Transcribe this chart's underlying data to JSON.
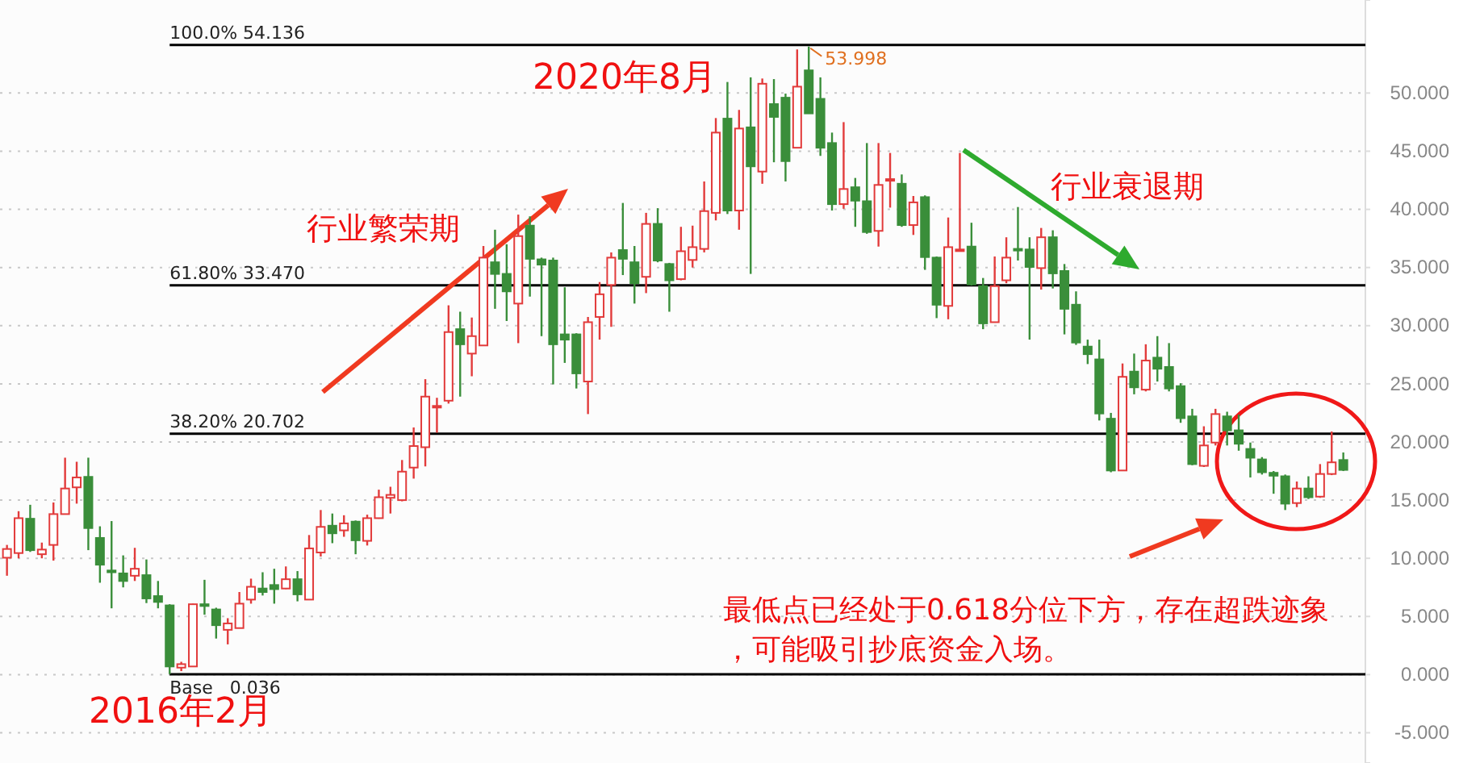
{
  "chart_data": {
    "type": "candlestick",
    "categories": [
      null,
      null,
      null,
      null,
      null,
      null,
      null,
      null,
      null,
      null,
      null,
      null,
      null,
      null,
      null,
      null,
      null,
      null,
      null,
      null,
      null,
      null,
      null,
      null,
      null,
      null,
      null,
      null,
      null,
      null,
      null,
      null,
      null,
      null,
      null,
      null,
      null,
      null,
      null,
      null,
      null,
      null,
      null,
      null,
      null,
      null,
      null,
      null,
      null,
      null,
      null,
      null,
      null,
      null,
      null,
      null,
      null,
      null,
      null,
      null,
      null,
      null,
      null,
      null,
      null,
      null,
      null,
      null,
      null,
      null,
      null,
      null,
      null,
      null,
      null,
      null,
      null,
      null,
      null,
      null,
      null,
      null,
      null,
      null,
      null,
      null,
      null,
      null,
      null,
      null,
      null,
      null,
      null,
      null,
      null,
      null,
      null,
      null,
      null,
      null,
      null,
      null,
      null,
      null,
      null,
      null,
      null,
      null,
      null,
      null,
      null,
      null,
      null,
      null,
      null,
      null
    ],
    "ohlc": [
      [
        10.05,
        11.15,
        8.5,
        10.8
      ],
      [
        10.45,
        14.05,
        10.0,
        13.45
      ],
      [
        13.4,
        14.6,
        10.55,
        10.7
      ],
      [
        10.35,
        11.35,
        10.0,
        10.75
      ],
      [
        11.15,
        14.8,
        9.8,
        13.8
      ],
      [
        13.8,
        18.65,
        13.8,
        16.0
      ],
      [
        16.1,
        18.3,
        14.7,
        16.95
      ],
      [
        17.0,
        18.65,
        10.7,
        12.6
      ],
      [
        11.75,
        12.75,
        7.9,
        9.45
      ],
      [
        8.95,
        13.2,
        5.7,
        8.8
      ],
      [
        8.7,
        10.25,
        7.5,
        8.05
      ],
      [
        8.5,
        10.9,
        8.05,
        9.1
      ],
      [
        8.55,
        9.9,
        6.15,
        6.55
      ],
      [
        6.75,
        8.05,
        5.7,
        6.25
      ],
      [
        5.95,
        6.05,
        0.036,
        0.7
      ],
      [
        0.6,
        1.1,
        0.3,
        0.9
      ],
      [
        0.7,
        6.1,
        0.7,
        6.05
      ],
      [
        6.05,
        8.15,
        5.15,
        5.9
      ],
      [
        5.6,
        5.75,
        3.1,
        4.25
      ],
      [
        3.85,
        4.85,
        2.6,
        4.4
      ],
      [
        4.0,
        7.1,
        4.0,
        6.1
      ],
      [
        6.45,
        8.25,
        6.1,
        7.55
      ],
      [
        7.4,
        8.8,
        6.8,
        7.1
      ],
      [
        7.7,
        9.1,
        6.1,
        7.35
      ],
      [
        7.4,
        9.3,
        7.35,
        8.2
      ],
      [
        8.2,
        8.9,
        6.3,
        6.9
      ],
      [
        6.45,
        12.0,
        6.45,
        10.85
      ],
      [
        10.5,
        14.15,
        10.15,
        12.7
      ],
      [
        12.8,
        13.85,
        11.3,
        12.15
      ],
      [
        12.4,
        13.7,
        11.85,
        13.0
      ],
      [
        13.15,
        13.25,
        10.35,
        11.55
      ],
      [
        11.5,
        13.75,
        11.1,
        13.45
      ],
      [
        13.45,
        15.9,
        13.4,
        15.25
      ],
      [
        15.2,
        16.15,
        13.85,
        15.45
      ],
      [
        15.0,
        18.45,
        14.9,
        17.45
      ],
      [
        17.8,
        21.25,
        16.85,
        19.65
      ],
      [
        19.55,
        25.4,
        17.9,
        23.9
      ],
      [
        23.05,
        23.8,
        20.8,
        23.1
      ],
      [
        23.55,
        31.75,
        23.3,
        29.45
      ],
      [
        29.7,
        31.2,
        23.9,
        28.4
      ],
      [
        27.6,
        30.7,
        25.65,
        29.1
      ],
      [
        28.3,
        36.85,
        28.3,
        35.85
      ],
      [
        35.45,
        38.25,
        31.45,
        34.45
      ],
      [
        34.45,
        37.0,
        30.4,
        32.95
      ],
      [
        31.9,
        39.55,
        28.5,
        37.7
      ],
      [
        38.6,
        39.4,
        32.5,
        35.75
      ],
      [
        35.7,
        35.85,
        29.1,
        35.25
      ],
      [
        35.6,
        35.85,
        24.95,
        28.4
      ],
      [
        29.25,
        33.3,
        26.8,
        28.8
      ],
      [
        29.25,
        29.35,
        24.6,
        25.9
      ],
      [
        25.2,
        30.75,
        22.4,
        30.3
      ],
      [
        30.75,
        33.75,
        28.8,
        32.7
      ],
      [
        33.5,
        36.3,
        29.9,
        35.85
      ],
      [
        36.5,
        40.55,
        34.35,
        35.75
      ],
      [
        35.45,
        36.85,
        31.9,
        33.65
      ],
      [
        34.2,
        39.7,
        32.8,
        38.75
      ],
      [
        38.75,
        40.1,
        35.45,
        35.6
      ],
      [
        35.3,
        35.4,
        31.2,
        33.9
      ],
      [
        34.0,
        38.5,
        33.9,
        36.4
      ],
      [
        35.65,
        38.6,
        35.0,
        36.75
      ],
      [
        36.6,
        42.4,
        36.3,
        39.85
      ],
      [
        39.7,
        47.85,
        39.05,
        46.6
      ],
      [
        47.8,
        50.95,
        39.6,
        39.9
      ],
      [
        39.9,
        48.55,
        38.25,
        46.95
      ],
      [
        47.05,
        51.35,
        34.45,
        43.7
      ],
      [
        43.25,
        51.25,
        42.2,
        50.8
      ],
      [
        49.05,
        51.2,
        44.05,
        47.95
      ],
      [
        49.6,
        49.95,
        42.4,
        44.15
      ],
      [
        45.3,
        53.75,
        45.3,
        50.55
      ],
      [
        51.95,
        53.998,
        48.25,
        48.25
      ],
      [
        49.5,
        51.35,
        44.6,
        45.3
      ],
      [
        45.7,
        46.6,
        39.9,
        40.45
      ],
      [
        40.45,
        47.5,
        40.05,
        41.75
      ],
      [
        41.9,
        42.7,
        38.5,
        40.75
      ],
      [
        40.7,
        45.7,
        37.9,
        38.05
      ],
      [
        38.15,
        45.7,
        36.8,
        42.1
      ],
      [
        42.5,
        44.85,
        40.15,
        42.6
      ],
      [
        42.2,
        43.0,
        38.5,
        38.65
      ],
      [
        38.65,
        41.15,
        37.8,
        40.6
      ],
      [
        41.05,
        41.2,
        34.8,
        35.9
      ],
      [
        35.85,
        35.95,
        30.65,
        31.8
      ],
      [
        31.7,
        39.3,
        30.55,
        36.75
      ],
      [
        36.45,
        44.85,
        36.45,
        36.55
      ],
      [
        36.8,
        38.85,
        33.45,
        33.55
      ],
      [
        33.4,
        34.1,
        29.7,
        30.2
      ],
      [
        30.3,
        35.95,
        30.3,
        33.4
      ],
      [
        33.9,
        37.6,
        33.65,
        35.85
      ],
      [
        36.6,
        40.2,
        35.6,
        36.5
      ],
      [
        36.55,
        37.6,
        28.8,
        35.05
      ],
      [
        34.95,
        38.4,
        33.1,
        37.6
      ],
      [
        37.6,
        38.2,
        33.2,
        34.5
      ],
      [
        34.7,
        35.3,
        29.25,
        31.45
      ],
      [
        31.8,
        32.95,
        28.35,
        28.55
      ],
      [
        28.2,
        28.8,
        26.7,
        27.55
      ],
      [
        27.1,
        28.8,
        21.85,
        22.45
      ],
      [
        22.0,
        22.5,
        17.4,
        17.55
      ],
      [
        17.55,
        26.75,
        17.55,
        25.6
      ],
      [
        26.05,
        27.6,
        24.1,
        24.7
      ],
      [
        24.5,
        28.4,
        24.35,
        27.0
      ],
      [
        27.25,
        29.1,
        25.2,
        26.3
      ],
      [
        26.45,
        28.5,
        24.35,
        24.6
      ],
      [
        24.8,
        25.05,
        21.65,
        22.05
      ],
      [
        22.2,
        22.85,
        18.0,
        18.1
      ],
      [
        17.95,
        21.35,
        17.85,
        19.7
      ],
      [
        19.95,
        22.85,
        19.7,
        22.4
      ],
      [
        22.2,
        22.6,
        19.7,
        21.0
      ],
      [
        21.0,
        22.35,
        19.25,
        19.85
      ],
      [
        19.4,
        19.95,
        16.95,
        18.65
      ],
      [
        18.5,
        18.7,
        17.2,
        17.4
      ],
      [
        17.35,
        17.5,
        15.55,
        17.1
      ],
      [
        17.05,
        17.2,
        14.15,
        14.7
      ],
      [
        14.75,
        16.6,
        14.4,
        16.0
      ],
      [
        16.0,
        17.05,
        15.1,
        15.25
      ],
      [
        15.3,
        18.1,
        15.2,
        17.25
      ],
      [
        17.25,
        20.9,
        17.15,
        18.25
      ],
      [
        18.45,
        19.1,
        17.5,
        17.6
      ]
    ],
    "ylim": [
      -7.6,
      58
    ],
    "yticks": [
      {
        "value": -5,
        "label": "-5.000"
      },
      {
        "value": 0,
        "label": "0.000"
      },
      {
        "value": 5,
        "label": "5.000"
      },
      {
        "value": 10,
        "label": "10.000"
      },
      {
        "value": 15,
        "label": "15.000"
      },
      {
        "value": 20,
        "label": "20.000"
      },
      {
        "value": 25,
        "label": "25.000"
      },
      {
        "value": 30,
        "label": "30.000"
      },
      {
        "value": 35,
        "label": "35.000"
      },
      {
        "value": 40,
        "label": "40.000"
      },
      {
        "value": 45,
        "label": "45.000"
      },
      {
        "value": 50,
        "label": "50.000"
      }
    ],
    "grid": "y",
    "tick_labels": "y",
    "ref_lines": [
      {
        "axis": "y",
        "value": 54.136,
        "label": "100.0% 54.136",
        "color": "#000000"
      },
      {
        "axis": "y",
        "value": 33.47,
        "label": "61.80% 33.470",
        "color": "#000000"
      },
      {
        "axis": "y",
        "value": 20.702,
        "label": "38.20% 20.702",
        "color": "#000000"
      },
      {
        "axis": "y",
        "value": 0.036,
        "label": "Base   0.036",
        "color": "#000000"
      }
    ],
    "annotations": [
      "2020年8月",
      "行业繁荣期",
      "行业衰退期",
      "2016年2月",
      "最低点已经处于0.618分位下方，存在超跌迹象，可能吸引抄底资金入场。",
      {
        "text": "53.998",
        "y": 53.998
      }
    ]
  }
}
